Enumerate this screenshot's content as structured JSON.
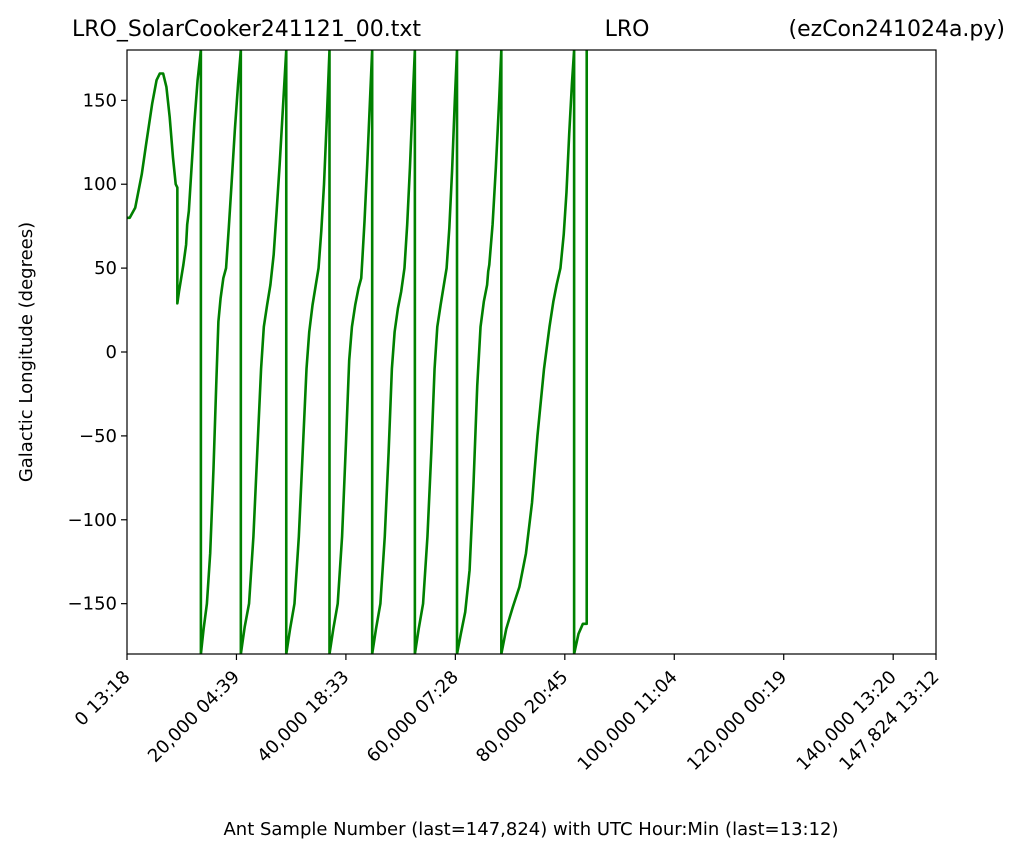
{
  "chart_data": {
    "type": "line",
    "title": {
      "left": "LRO_SolarCooker241121_00.txt",
      "center": "LRO",
      "right": "(ezCon241024a.py)"
    },
    "xlabel": "Ant Sample Number (last=147,824) with UTC Hour:Min (last=13:12)",
    "ylabel": "Galactic Longitude (degrees)",
    "xlim": [
      0,
      147824
    ],
    "ylim": [
      -180,
      180
    ],
    "grid": false,
    "legend": "none",
    "line_color": "#008000",
    "x_ticks": [
      {
        "value": 0,
        "label": "0  13:18"
      },
      {
        "value": 20000,
        "label": "20,000  04:39"
      },
      {
        "value": 40000,
        "label": "40,000  18:33"
      },
      {
        "value": 60000,
        "label": "60,000  07:28"
      },
      {
        "value": 80000,
        "label": "80,000  20:45"
      },
      {
        "value": 100000,
        "label": "100,000  11:04"
      },
      {
        "value": 120000,
        "label": "120,000  00:19"
      },
      {
        "value": 140000,
        "label": "140,000  13:20"
      },
      {
        "value": 147824,
        "label": "147,824  13:12"
      }
    ],
    "y_ticks": [
      {
        "value": 150,
        "label": "150"
      },
      {
        "value": 100,
        "label": "100"
      },
      {
        "value": 50,
        "label": "50"
      },
      {
        "value": 0,
        "label": "0"
      },
      {
        "value": -50,
        "label": "−50"
      },
      {
        "value": -100,
        "label": "−100"
      },
      {
        "value": -150,
        "label": "−150"
      }
    ],
    "series": [
      {
        "points": [
          [
            0,
            80
          ],
          [
            500,
            80
          ],
          [
            1500,
            86
          ],
          [
            2700,
            106
          ],
          [
            3500,
            124
          ],
          [
            4600,
            148
          ],
          [
            5400,
            162
          ],
          [
            6000,
            166
          ],
          [
            6600,
            166
          ],
          [
            7200,
            158
          ],
          [
            7800,
            140
          ],
          [
            8400,
            116
          ],
          [
            8900,
            100
          ],
          [
            9200,
            98
          ],
          [
            9200,
            29
          ],
          [
            9500,
            36
          ],
          [
            10300,
            52
          ],
          [
            10800,
            64
          ],
          [
            11000,
            76
          ],
          [
            11300,
            84
          ],
          [
            11700,
            105
          ],
          [
            12300,
            136
          ],
          [
            12900,
            162
          ],
          [
            13500,
            180
          ],
          [
            13500,
            -180
          ],
          [
            14000,
            -165
          ],
          [
            14600,
            -150
          ],
          [
            15200,
            -120
          ],
          [
            15800,
            -70
          ],
          [
            16300,
            -20
          ],
          [
            16700,
            18
          ],
          [
            17100,
            32
          ],
          [
            17600,
            44
          ],
          [
            18100,
            50
          ],
          [
            18600,
            74
          ],
          [
            19100,
            100
          ],
          [
            19700,
            132
          ],
          [
            20300,
            160
          ],
          [
            20800,
            180
          ],
          [
            20800,
            -180
          ],
          [
            21500,
            -164
          ],
          [
            22300,
            -150
          ],
          [
            23100,
            -110
          ],
          [
            23800,
            -60
          ],
          [
            24500,
            -10
          ],
          [
            25000,
            15
          ],
          [
            25600,
            28
          ],
          [
            26200,
            40
          ],
          [
            26800,
            58
          ],
          [
            27300,
            82
          ],
          [
            27900,
            112
          ],
          [
            28500,
            146
          ],
          [
            29100,
            180
          ],
          [
            29100,
            -180
          ],
          [
            29800,
            -165
          ],
          [
            30600,
            -150
          ],
          [
            31400,
            -110
          ],
          [
            32100,
            -60
          ],
          [
            32800,
            -10
          ],
          [
            33300,
            12
          ],
          [
            33900,
            28
          ],
          [
            34500,
            40
          ],
          [
            35000,
            50
          ],
          [
            35500,
            72
          ],
          [
            36000,
            100
          ],
          [
            36500,
            138
          ],
          [
            37000,
            180
          ],
          [
            37000,
            -180
          ],
          [
            37700,
            -165
          ],
          [
            38500,
            -150
          ],
          [
            39300,
            -110
          ],
          [
            40000,
            -55
          ],
          [
            40600,
            -5
          ],
          [
            41100,
            15
          ],
          [
            41700,
            28
          ],
          [
            42300,
            38
          ],
          [
            42800,
            44
          ],
          [
            43000,
            55
          ],
          [
            43400,
            78
          ],
          [
            43900,
            112
          ],
          [
            44400,
            150
          ],
          [
            44800,
            180
          ],
          [
            44800,
            -180
          ],
          [
            45500,
            -165
          ],
          [
            46300,
            -150
          ],
          [
            47100,
            -110
          ],
          [
            47800,
            -60
          ],
          [
            48400,
            -10
          ],
          [
            48900,
            12
          ],
          [
            49500,
            26
          ],
          [
            50100,
            36
          ],
          [
            50700,
            50
          ],
          [
            51200,
            76
          ],
          [
            51700,
            110
          ],
          [
            52200,
            150
          ],
          [
            52600,
            180
          ],
          [
            52600,
            -180
          ],
          [
            53300,
            -165
          ],
          [
            54100,
            -150
          ],
          [
            54900,
            -110
          ],
          [
            55600,
            -60
          ],
          [
            56200,
            -10
          ],
          [
            56700,
            15
          ],
          [
            57300,
            28
          ],
          [
            57900,
            40
          ],
          [
            58400,
            50
          ],
          [
            58900,
            74
          ],
          [
            59400,
            108
          ],
          [
            59900,
            150
          ],
          [
            60300,
            180
          ],
          [
            60300,
            -180
          ],
          [
            61000,
            -168
          ],
          [
            61800,
            -155
          ],
          [
            62600,
            -130
          ],
          [
            63300,
            -80
          ],
          [
            64000,
            -20
          ],
          [
            64600,
            15
          ],
          [
            65200,
            30
          ],
          [
            65800,
            40
          ],
          [
            66000,
            48
          ],
          [
            66200,
            52
          ],
          [
            66800,
            76
          ],
          [
            67400,
            110
          ],
          [
            68000,
            150
          ],
          [
            68400,
            180
          ],
          [
            68400,
            -180
          ],
          [
            69300,
            -165
          ],
          [
            70500,
            -152
          ],
          [
            71700,
            -140
          ],
          [
            72900,
            -120
          ],
          [
            74000,
            -90
          ],
          [
            75000,
            -50
          ],
          [
            76200,
            -10
          ],
          [
            77200,
            15
          ],
          [
            77900,
            30
          ],
          [
            78500,
            40
          ],
          [
            79200,
            50
          ],
          [
            79800,
            70
          ],
          [
            80300,
            95
          ],
          [
            80800,
            130
          ],
          [
            81300,
            160
          ],
          [
            81700,
            180
          ],
          [
            81700,
            -180
          ],
          [
            82500,
            -168
          ],
          [
            83300,
            -162
          ],
          [
            84000,
            -162
          ],
          [
            84000,
            180
          ]
        ]
      }
    ]
  }
}
